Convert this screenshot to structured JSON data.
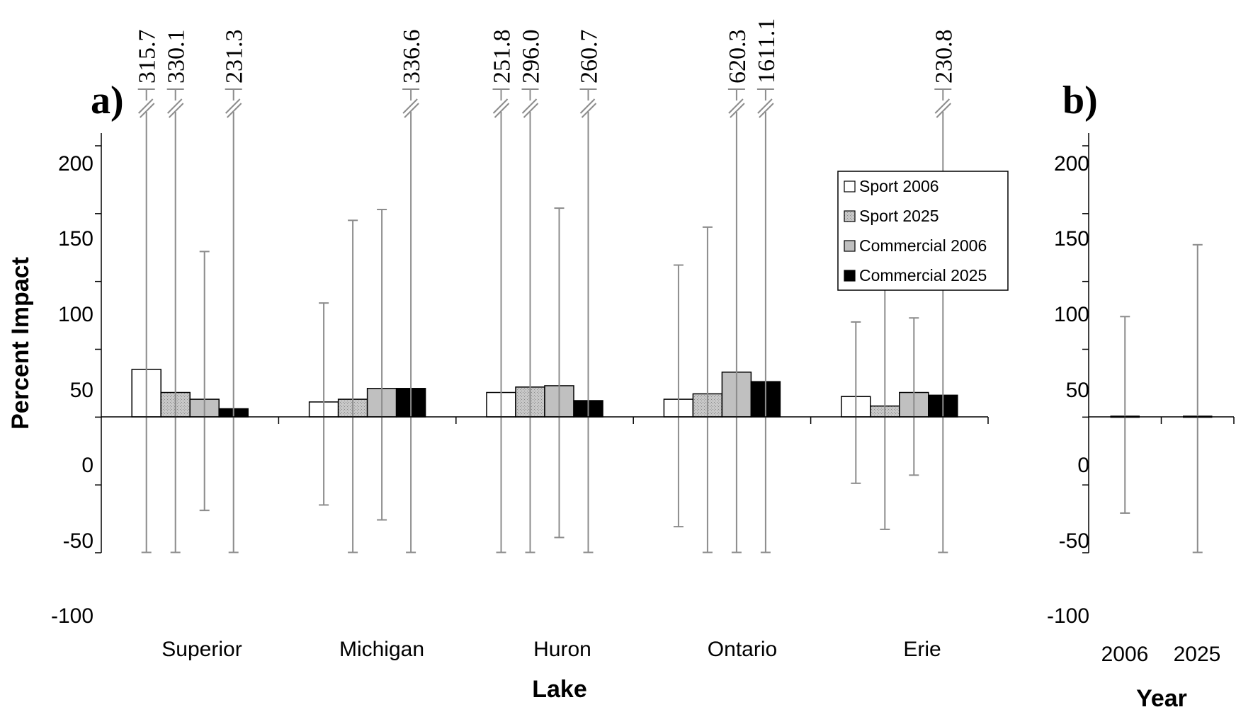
{
  "chart_data": [
    {
      "panel_label": "a)",
      "type": "bar",
      "xlabel": "Lake",
      "ylabel": "Percent Impact",
      "ylim": [
        -100,
        200
      ],
      "yticks": [
        "200",
        "150",
        "100",
        "50",
        "0",
        "-50",
        "-100"
      ],
      "categories": [
        "Superior",
        "Michigan",
        "Huron",
        "Ontario",
        "Erie"
      ],
      "legend": {
        "placement": "top-right"
      },
      "series": [
        {
          "name": "Sport 2006",
          "color": "#ffffff",
          "pattern": "none",
          "values": [
            35,
            11,
            18,
            13,
            15
          ],
          "err_low": [
            -100,
            -65,
            -100,
            -81,
            -49
          ],
          "err_high": [
            315.7,
            84,
            251.8,
            112,
            70
          ],
          "err_high_label": [
            "315.7",
            "",
            "251.8",
            "",
            ""
          ]
        },
        {
          "name": "Sport 2025",
          "color": "#c0c0c0",
          "pattern": "dots",
          "values": [
            18,
            13,
            22,
            17,
            8
          ],
          "err_low": [
            -100,
            -100,
            -100,
            -100,
            -83
          ],
          "err_high": [
            330.1,
            145,
            296.0,
            140,
            98
          ],
          "err_high_label": [
            "330.1",
            "",
            "296.0",
            "",
            ""
          ]
        },
        {
          "name": "Commercial 2006",
          "color": "#c0c0c0",
          "pattern": "none",
          "values": [
            13,
            21,
            23,
            33,
            18
          ],
          "err_low": [
            -69,
            -76,
            -89,
            -100,
            -43
          ],
          "err_high": [
            122,
            153,
            154,
            620.3,
            73
          ],
          "err_high_label": [
            "",
            "",
            "",
            "620.3",
            ""
          ]
        },
        {
          "name": "Commercial 2025",
          "color": "#000000",
          "pattern": "none",
          "values": [
            6,
            21,
            12,
            26,
            16
          ],
          "err_low": [
            -100,
            -100,
            -100,
            -100,
            -100
          ],
          "err_high": [
            231.3,
            336.6,
            260.7,
            1611.1,
            230.8
          ],
          "err_high_label": [
            "231.3",
            "336.6",
            "260.7",
            "1611.1",
            "230.8"
          ]
        }
      ]
    },
    {
      "panel_label": "b)",
      "type": "bar",
      "xlabel": "Year",
      "ylabel": "",
      "ylim": [
        -100,
        200
      ],
      "yticks": [
        "200",
        "150",
        "100",
        "50",
        "0",
        "-50",
        "-100"
      ],
      "categories": [
        "2006",
        "2025"
      ],
      "series": [
        {
          "color": "#000000",
          "values": [
            0.5,
            0.5
          ],
          "err_low": [
            -71,
            -100
          ],
          "err_high": [
            74,
            127
          ]
        }
      ]
    }
  ]
}
